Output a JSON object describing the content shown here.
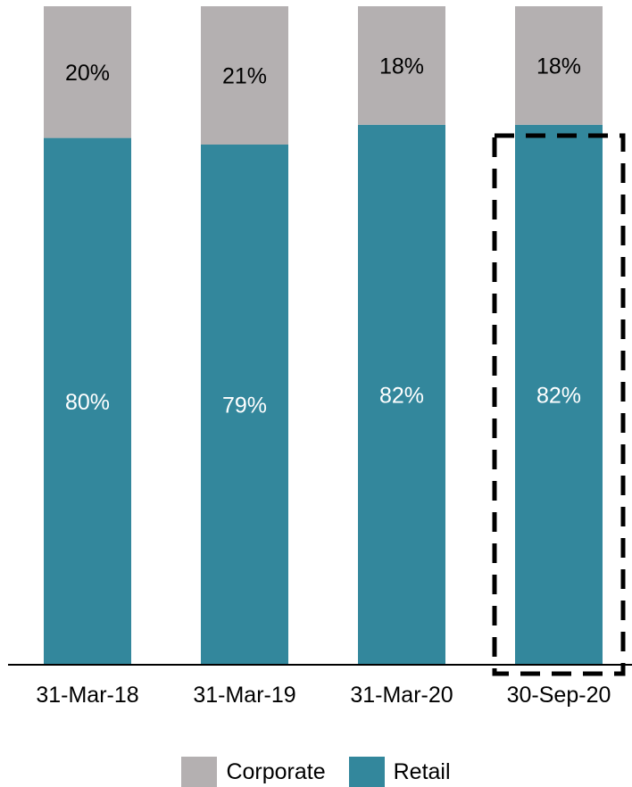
{
  "chart_data": {
    "type": "bar",
    "stacked": true,
    "categories": [
      "31-Mar-18",
      "31-Mar-19",
      "31-Mar-20",
      "30-Sep-20"
    ],
    "series": [
      {
        "name": "Retail",
        "values": [
          80,
          79,
          82,
          82
        ],
        "labels": [
          "80%",
          "79%",
          "82%",
          "82%"
        ],
        "color": "#33879c",
        "label_color": "#ffffff"
      },
      {
        "name": "Corporate",
        "values": [
          20,
          21,
          18,
          18
        ],
        "labels": [
          "20%",
          "21%",
          "18%",
          "18%"
        ],
        "color": "#b4b0b1",
        "label_color": "#000000"
      }
    ],
    "ylim": [
      0,
      100
    ],
    "highlight_category": "30-Sep-20",
    "legend_position": "bottom"
  },
  "legend": {
    "corporate_label": "Corporate",
    "retail_label": "Retail",
    "corporate_color": "#b4b0b1",
    "retail_color": "#33879c"
  }
}
